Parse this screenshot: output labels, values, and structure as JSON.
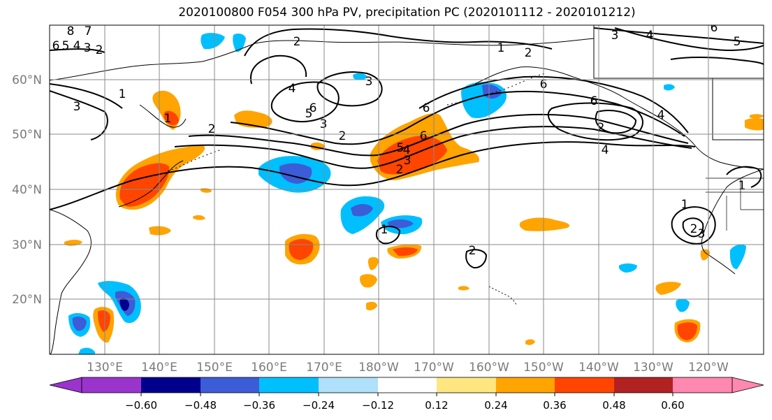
{
  "title": "2020100800 F054 300 hPa PV, precipitation PC (2020101112 - 2020101212)",
  "lat_labels": [
    "60°N",
    "50°N",
    "40°N",
    "30°N",
    "20°N"
  ],
  "lon_labels": [
    "130°E",
    "140°E",
    "150°E",
    "160°E",
    "170°E",
    "180°W",
    "170°W",
    "160°W",
    "150°W",
    "140°W",
    "130°W",
    "120°W"
  ],
  "colorbar": {
    "colors": [
      "#9a34cd",
      "#00008c",
      "#3c5cd8",
      "#00bfff",
      "#b0e0fa",
      "#ffffff",
      "#ffe680",
      "#ffa400",
      "#ff4500",
      "#b22222",
      "#ff88b0"
    ],
    "tick_labels": [
      "−0.60",
      "−0.48",
      "−0.36",
      "−0.24",
      "−0.12",
      "0.12",
      "0.24",
      "0.36",
      "0.48",
      "0.60"
    ]
  },
  "contour_labels": [
    "8",
    "7",
    "6",
    "5",
    "4",
    "3",
    "2",
    "1",
    "3",
    "1",
    "2",
    "2",
    "4",
    "3",
    "5",
    "6",
    "3",
    "2",
    "3",
    "4",
    "5",
    "6",
    "1",
    "2",
    "2",
    "6",
    "6",
    "6",
    "4",
    "2",
    "3",
    "4",
    "5",
    "6",
    "4",
    "1",
    "1",
    "2",
    "3",
    "1",
    "2"
  ]
}
